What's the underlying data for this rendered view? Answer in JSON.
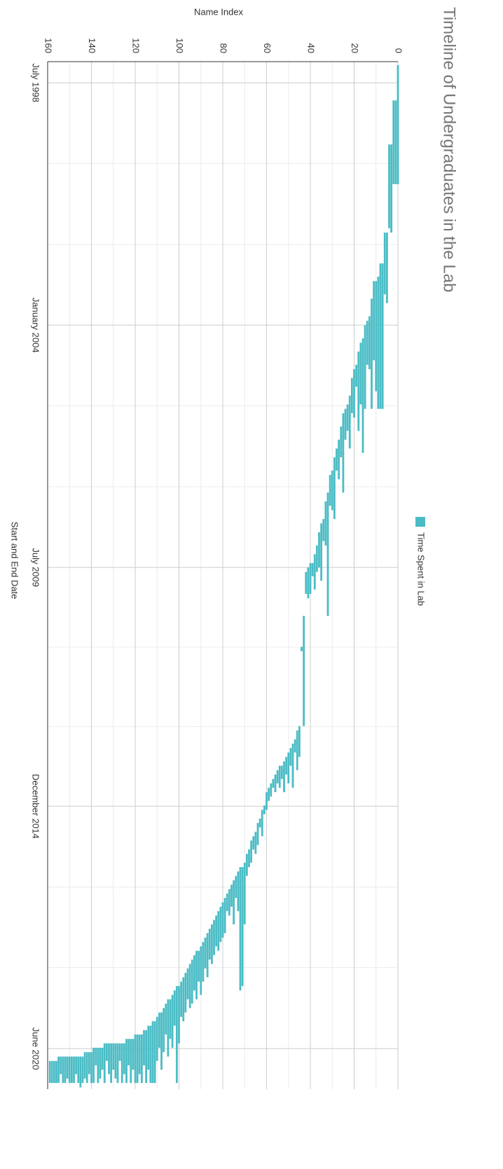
{
  "chart_data": {
    "type": "timeline",
    "title": "Timeline of Undergraduates in the Lab",
    "x_label": "Start and End Date",
    "y_label": "Name Index",
    "legend": "top",
    "grid": true,
    "xlim": [
      1998.02,
      2021.34
    ],
    "xticks": [
      {
        "value": 1998.5,
        "label": "July  1998"
      },
      {
        "value": 2004.0,
        "label": "January  2004"
      },
      {
        "value": 2009.5,
        "label": "July  2009"
      },
      {
        "value": 2014.92,
        "label": "December  2014"
      },
      {
        "value": 2020.42,
        "label": "June  2020"
      }
    ],
    "xminor": [
      2000.33,
      2002.17,
      2005.83,
      2007.67,
      2011.31,
      2013.11,
      2016.75,
      2018.58
    ],
    "ylim": [
      0,
      160
    ],
    "yticks": [
      0,
      20,
      40,
      60,
      80,
      100,
      120,
      140,
      160
    ],
    "yminor": [
      10,
      30,
      50,
      70,
      90,
      110,
      130,
      150
    ],
    "series": [
      {
        "name": "Time Spent in Lab",
        "color": "#4bbcc5",
        "start": [
          1998.1,
          1998.9,
          1998.9,
          1999.9,
          1999.9,
          2001.9,
          2001.9,
          2002.6,
          2002.6,
          2002.9,
          2003.0,
          2003.0,
          2003.4,
          2003.8,
          2003.9,
          2004.0,
          2004.3,
          2004.4,
          2004.6,
          2004.9,
          2005.0,
          2005.2,
          2005.6,
          2005.8,
          2005.9,
          2006.0,
          2006.3,
          2006.6,
          2006.8,
          2007.0,
          2007.3,
          2007.4,
          2007.8,
          2008.0,
          2008.4,
          2008.5,
          2008.7,
          2009.0,
          2009.2,
          2009.4,
          2009.4,
          2009.5,
          2009.6,
          2010.6,
          2011.3,
          2013.1,
          2013.2,
          2013.4,
          2013.5,
          2013.6,
          2013.7,
          2013.8,
          2013.9,
          2014.0,
          2014.0,
          2014.1,
          2014.2,
          2014.3,
          2014.4,
          2014.5,
          2014.6,
          2014.9,
          2015.0,
          2015.2,
          2015.3,
          2015.5,
          2015.6,
          2015.7,
          2015.9,
          2016.0,
          2016.2,
          2016.3,
          2016.3,
          2016.4,
          2016.5,
          2016.6,
          2016.7,
          2016.8,
          2016.9,
          2017.0,
          2017.1,
          2017.2,
          2017.3,
          2017.4,
          2017.5,
          2017.6,
          2017.7,
          2017.8,
          2017.9,
          2018.0,
          2018.1,
          2018.2,
          2018.2,
          2018.3,
          2018.4,
          2018.5,
          2018.6,
          2018.7,
          2018.8,
          2018.9,
          2019.0,
          2019.0,
          2019.1,
          2019.2,
          2019.3,
          2019.3,
          2019.4,
          2019.5,
          2019.6,
          2019.6,
          2019.7,
          2019.8,
          2019.8,
          2019.9,
          2019.9,
          2020.0,
          2020.0,
          2020.1,
          2020.1,
          2020.1,
          2020.1,
          2020.2,
          2020.2,
          2020.2,
          2020.2,
          2020.3,
          2020.3,
          2020.3,
          2020.3,
          2020.3,
          2020.3,
          2020.3,
          2020.3,
          2020.3,
          2020.3,
          2020.4,
          2020.4,
          2020.4,
          2020.4,
          2020.4,
          2020.5,
          2020.5,
          2020.5,
          2020.5,
          2020.6,
          2020.6,
          2020.6,
          2020.6,
          2020.6,
          2020.6,
          2020.6,
          2020.6,
          2020.6,
          2020.6,
          2020.6,
          2020.6,
          2020.7,
          2020.7,
          2020.7,
          2020.7
        ],
        "end": [
          2000.8,
          2000.8,
          2000.8,
          2001.9,
          2001.8,
          2003.5,
          2003.3,
          2005.9,
          2005.9,
          2005.9,
          2005.5,
          2004.8,
          2005.9,
          2005.0,
          2004.9,
          2005.9,
          2006.9,
          2005.8,
          2006.4,
          2005.4,
          2006.1,
          2006.0,
          2006.8,
          2006.4,
          2006.6,
          2007.8,
          2007.0,
          2007.5,
          2007.3,
          2008.4,
          2008.2,
          2008.1,
          2010.6,
          2009.0,
          2008.9,
          2009.8,
          2009.5,
          2009.6,
          2010.0,
          2009.7,
          2010.1,
          2010.2,
          2010.1,
          2013.1,
          2011.4,
          2013.8,
          2014.1,
          2013.7,
          2014.5,
          2014.0,
          2014.4,
          2014.2,
          2014.6,
          2014.3,
          2014.5,
          2014.4,
          2014.6,
          2014.5,
          2014.7,
          2014.8,
          2015.0,
          2015.1,
          2015.6,
          2015.4,
          2015.8,
          2016.0,
          2015.9,
          2016.2,
          2016.3,
          2016.5,
          2017.6,
          2019.0,
          2019.1,
          2017.3,
          2017.0,
          2017.6,
          2017.2,
          2017.4,
          2017.3,
          2017.8,
          2017.9,
          2018.0,
          2018.2,
          2018.1,
          2018.3,
          2018.5,
          2018.4,
          2018.8,
          2018.6,
          2018.9,
          2019.2,
          2018.9,
          2019.3,
          2019.1,
          2019.4,
          2019.5,
          2019.3,
          2019.6,
          2019.8,
          2019.7,
          2020.3,
          2021.2,
          2019.9,
          2020.4,
          2020.2,
          2020.6,
          2020.1,
          2020.5,
          2020.9,
          2020.4,
          2020.7,
          2021.2,
          2021.2,
          2021.2,
          2020.9,
          2021.2,
          2020.8,
          2021.2,
          2021.0,
          2021.2,
          2021.2,
          2020.9,
          2021.2,
          2020.8,
          2021.2,
          2021.0,
          2021.2,
          2020.7,
          2021.2,
          2021.1,
          2020.9,
          2021.2,
          2021.0,
          2020.7,
          2021.2,
          2020.9,
          2021.1,
          2021.2,
          2020.8,
          2021.2,
          2021.2,
          2021.0,
          2021.2,
          2021.1,
          2021.2,
          2021.3,
          2021.2,
          2021.0,
          2021.2,
          2021.2,
          2021.2,
          2021.1,
          2021.2,
          2021.2,
          2021.0,
          2021.2,
          2021.2,
          2021.2,
          2021.2,
          2021.2
        ]
      }
    ]
  }
}
